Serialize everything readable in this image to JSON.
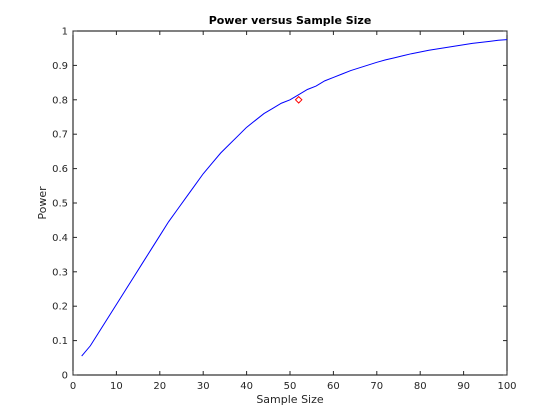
{
  "chart_data": {
    "type": "line",
    "title": "Power versus Sample Size",
    "xlabel": "Sample Size",
    "ylabel": "Power",
    "xlim": [
      0,
      100
    ],
    "ylim": [
      0,
      1
    ],
    "xticks": [
      0,
      10,
      20,
      30,
      40,
      50,
      60,
      70,
      80,
      90,
      100
    ],
    "yticks": [
      0,
      0.1,
      0.2,
      0.3,
      0.4,
      0.5,
      0.6,
      0.7,
      0.8,
      0.9,
      1
    ],
    "ytick_labels": [
      "0",
      "0.1",
      "0.2",
      "0.3",
      "0.4",
      "0.5",
      "0.6",
      "0.7",
      "0.8",
      "0.9",
      "1"
    ],
    "grid": false,
    "legend": "none",
    "series": [
      {
        "color": "#0000ff",
        "x": [
          2,
          4,
          6,
          8,
          10,
          12,
          14,
          16,
          18,
          20,
          22,
          24,
          26,
          28,
          30,
          32,
          34,
          36,
          38,
          40,
          42,
          44,
          46,
          48,
          50,
          52,
          54,
          56,
          58,
          60,
          62,
          64,
          66,
          68,
          70,
          72,
          74,
          76,
          78,
          80,
          82,
          84,
          86,
          88,
          90,
          92,
          94,
          96,
          98,
          100
        ],
        "y": [
          0.055,
          0.085,
          0.125,
          0.165,
          0.205,
          0.245,
          0.285,
          0.325,
          0.365,
          0.405,
          0.445,
          0.48,
          0.515,
          0.55,
          0.585,
          0.615,
          0.645,
          0.67,
          0.695,
          0.72,
          0.74,
          0.76,
          0.775,
          0.79,
          0.8,
          0.815,
          0.83,
          0.84,
          0.855,
          0.865,
          0.875,
          0.885,
          0.893,
          0.901,
          0.909,
          0.916,
          0.922,
          0.928,
          0.934,
          0.939,
          0.944,
          0.948,
          0.952,
          0.956,
          0.96,
          0.964,
          0.967,
          0.97,
          0.973,
          0.975
        ]
      }
    ],
    "marker": {
      "color": "#ff0000",
      "shape": "diamond",
      "x": 52,
      "y": 0.8
    }
  }
}
